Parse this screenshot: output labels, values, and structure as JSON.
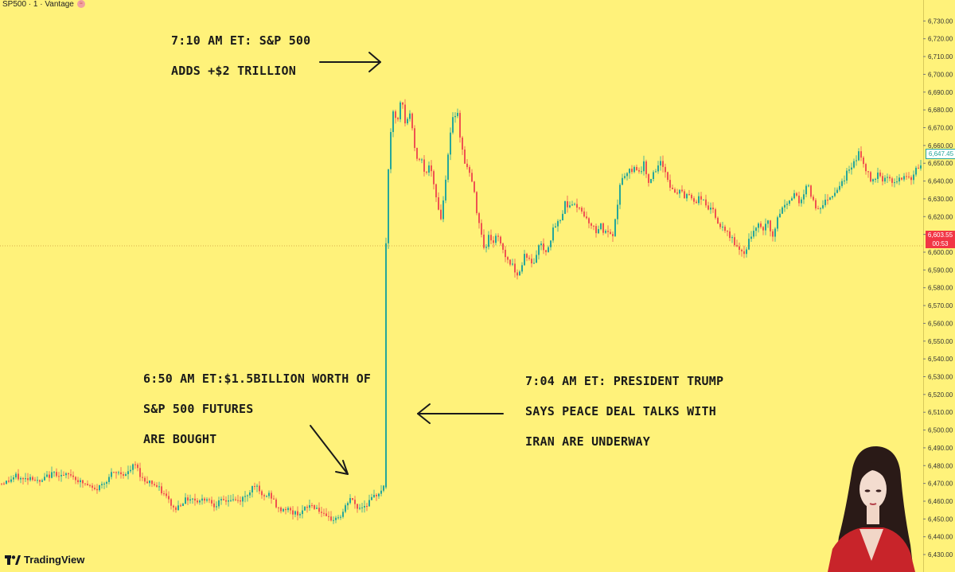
{
  "header": {
    "symbol": "SP500 · 1 · Vantage"
  },
  "annotations": {
    "top": [
      "7:10 AM ET: S&P 500",
      "ADDS +$2 TRILLION"
    ],
    "left": [
      "6:50 AM ET:$1.5BILLION WORTH OF",
      "S&P 500 FUTURES",
      "ARE BOUGHT"
    ],
    "right": [
      "7:04 AM ET: PRESIDENT TRUMP",
      "SAYS PEACE DEAL TALKS WITH",
      "IRAN ARE UNDERWAY"
    ]
  },
  "price_tags": {
    "last": "6,647.45",
    "current_price": "6,603.55",
    "countdown": "00:53"
  },
  "branding": {
    "logo_text": "TradingView"
  },
  "colors": {
    "background": "#fff27a",
    "up": "#26a69a",
    "down": "#ef5350",
    "current": "#f23645"
  },
  "chart_data": {
    "type": "candlestick",
    "ylim": [
      6426,
      6740
    ],
    "yticks": [
      6430,
      6440,
      6450,
      6460,
      6470,
      6480,
      6490,
      6500,
      6510,
      6520,
      6530,
      6540,
      6550,
      6560,
      6570,
      6580,
      6590,
      6600,
      6610,
      6620,
      6630,
      6640,
      6650,
      6660,
      6670,
      6680,
      6690,
      6700,
      6710,
      6720,
      6730
    ],
    "ytick_labels": [
      "6,430.00",
      "6,440.00",
      "6,450.00",
      "6,460.00",
      "6,470.00",
      "6,480.00",
      "6,490.00",
      "6,500.00",
      "6,510.00",
      "6,520.00",
      "6,530.00",
      "6,540.00",
      "6,550.00",
      "6,560.00",
      "6,570.00",
      "6,580.00",
      "6,590.00",
      "6,600.00",
      "6,610.00",
      "6,620.00",
      "6,630.00",
      "6,640.00",
      "6,650.00",
      "6,660.00",
      "6,670.00",
      "6,680.00",
      "6,690.00",
      "6,700.00",
      "6,710.00",
      "6,720.00",
      "6,730.00"
    ],
    "current_price": 6603.55,
    "last_price": 6647.45,
    "path": [
      [
        0,
        6470
      ],
      [
        10,
        6471
      ],
      [
        20,
        6474
      ],
      [
        30,
        6472
      ],
      [
        40,
        6474
      ],
      [
        50,
        6470
      ],
      [
        60,
        6474
      ],
      [
        70,
        6476
      ],
      [
        80,
        6474
      ],
      [
        90,
        6475
      ],
      [
        100,
        6471
      ],
      [
        110,
        6469
      ],
      [
        120,
        6466
      ],
      [
        130,
        6470
      ],
      [
        140,
        6475
      ],
      [
        150,
        6476
      ],
      [
        160,
        6475
      ],
      [
        170,
        6481
      ],
      [
        180,
        6472
      ],
      [
        190,
        6471
      ],
      [
        200,
        6467
      ],
      [
        210,
        6462
      ],
      [
        220,
        6455
      ],
      [
        230,
        6460
      ],
      [
        240,
        6462
      ],
      [
        250,
        6460
      ],
      [
        260,
        6462
      ],
      [
        270,
        6458
      ],
      [
        280,
        6460
      ],
      [
        290,
        6461
      ],
      [
        300,
        6460
      ],
      [
        310,
        6463
      ],
      [
        320,
        6470
      ],
      [
        330,
        6462
      ],
      [
        340,
        6464
      ],
      [
        350,
        6455
      ],
      [
        360,
        6456
      ],
      [
        370,
        6453
      ],
      [
        380,
        6454
      ],
      [
        390,
        6458
      ],
      [
        400,
        6456
      ],
      [
        410,
        6450
      ],
      [
        420,
        6450
      ],
      [
        430,
        6452
      ],
      [
        440,
        6462
      ],
      [
        450,
        6456
      ],
      [
        460,
        6458
      ],
      [
        470,
        6462
      ],
      [
        480,
        6467
      ],
      [
        484,
        6468
      ],
      [
        485,
        6590
      ],
      [
        487,
        6620
      ],
      [
        490,
        6660
      ],
      [
        495,
        6680
      ],
      [
        500,
        6672
      ],
      [
        505,
        6688
      ],
      [
        510,
        6670
      ],
      [
        515,
        6680
      ],
      [
        520,
        6664
      ],
      [
        525,
        6650
      ],
      [
        530,
        6655
      ],
      [
        535,
        6642
      ],
      [
        540,
        6650
      ],
      [
        545,
        6638
      ],
      [
        550,
        6628
      ],
      [
        555,
        6618
      ],
      [
        560,
        6640
      ],
      [
        565,
        6662
      ],
      [
        570,
        6676
      ],
      [
        575,
        6680
      ],
      [
        580,
        6660
      ],
      [
        585,
        6650
      ],
      [
        590,
        6645
      ],
      [
        595,
        6637
      ],
      [
        600,
        6622
      ],
      [
        605,
        6612
      ],
      [
        610,
        6600
      ],
      [
        615,
        6610
      ],
      [
        620,
        6605
      ],
      [
        625,
        6610
      ],
      [
        630,
        6605
      ],
      [
        635,
        6598
      ],
      [
        640,
        6595
      ],
      [
        645,
        6592
      ],
      [
        650,
        6588
      ],
      [
        655,
        6590
      ],
      [
        660,
        6600
      ],
      [
        665,
        6596
      ],
      [
        670,
        6592
      ],
      [
        675,
        6600
      ],
      [
        680,
        6606
      ],
      [
        685,
        6600
      ],
      [
        690,
        6604
      ],
      [
        695,
        6612
      ],
      [
        700,
        6616
      ],
      [
        705,
        6618
      ],
      [
        710,
        6628
      ],
      [
        715,
        6626
      ],
      [
        720,
        6628
      ],
      [
        725,
        6624
      ],
      [
        730,
        6626
      ],
      [
        735,
        6620
      ],
      [
        740,
        6618
      ],
      [
        745,
        6614
      ],
      [
        750,
        6612
      ],
      [
        755,
        6616
      ],
      [
        760,
        6610
      ],
      [
        765,
        6612
      ],
      [
        770,
        6606
      ],
      [
        775,
        6622
      ],
      [
        780,
        6640
      ],
      [
        785,
        6642
      ],
      [
        790,
        6645
      ],
      [
        795,
        6646
      ],
      [
        800,
        6648
      ],
      [
        805,
        6645
      ],
      [
        810,
        6650
      ],
      [
        815,
        6640
      ],
      [
        820,
        6643
      ],
      [
        825,
        6645
      ],
      [
        830,
        6650
      ],
      [
        835,
        6648
      ],
      [
        840,
        6640
      ],
      [
        845,
        6635
      ],
      [
        850,
        6632
      ],
      [
        855,
        6636
      ],
      [
        860,
        6630
      ],
      [
        865,
        6634
      ],
      [
        870,
        6630
      ],
      [
        875,
        6628
      ],
      [
        880,
        6632
      ],
      [
        885,
        6628
      ],
      [
        890,
        6625
      ],
      [
        895,
        6625
      ],
      [
        900,
        6618
      ],
      [
        905,
        6615
      ],
      [
        910,
        6612
      ],
      [
        915,
        6610
      ],
      [
        920,
        6608
      ],
      [
        925,
        6604
      ],
      [
        930,
        6600
      ],
      [
        935,
        6598
      ],
      [
        940,
        6605
      ],
      [
        945,
        6610
      ],
      [
        950,
        6612
      ],
      [
        955,
        6616
      ],
      [
        960,
        6612
      ],
      [
        965,
        6618
      ],
      [
        970,
        6608
      ],
      [
        975,
        6614
      ],
      [
        980,
        6622
      ],
      [
        985,
        6626
      ],
      [
        990,
        6628
      ],
      [
        995,
        6630
      ],
      [
        1000,
        6634
      ],
      [
        1005,
        6628
      ],
      [
        1010,
        6632
      ],
      [
        1015,
        6638
      ],
      [
        1020,
        6632
      ],
      [
        1025,
        6625
      ],
      [
        1030,
        6625
      ],
      [
        1035,
        6628
      ],
      [
        1040,
        6630
      ],
      [
        1045,
        6632
      ],
      [
        1050,
        6634
      ],
      [
        1055,
        6638
      ],
      [
        1060,
        6640
      ],
      [
        1065,
        6645
      ],
      [
        1070,
        6648
      ],
      [
        1075,
        6652
      ],
      [
        1080,
        6656
      ],
      [
        1085,
        6650
      ],
      [
        1090,
        6645
      ],
      [
        1095,
        6640
      ],
      [
        1100,
        6642
      ],
      [
        1105,
        6646
      ],
      [
        1110,
        6640
      ],
      [
        1115,
        6644
      ],
      [
        1120,
        6640
      ],
      [
        1125,
        6638
      ],
      [
        1130,
        6642
      ],
      [
        1135,
        6640
      ],
      [
        1140,
        6644
      ],
      [
        1145,
        6640
      ],
      [
        1150,
        6645
      ],
      [
        1155,
        6648
      ],
      [
        1158,
        6647.45
      ]
    ]
  }
}
